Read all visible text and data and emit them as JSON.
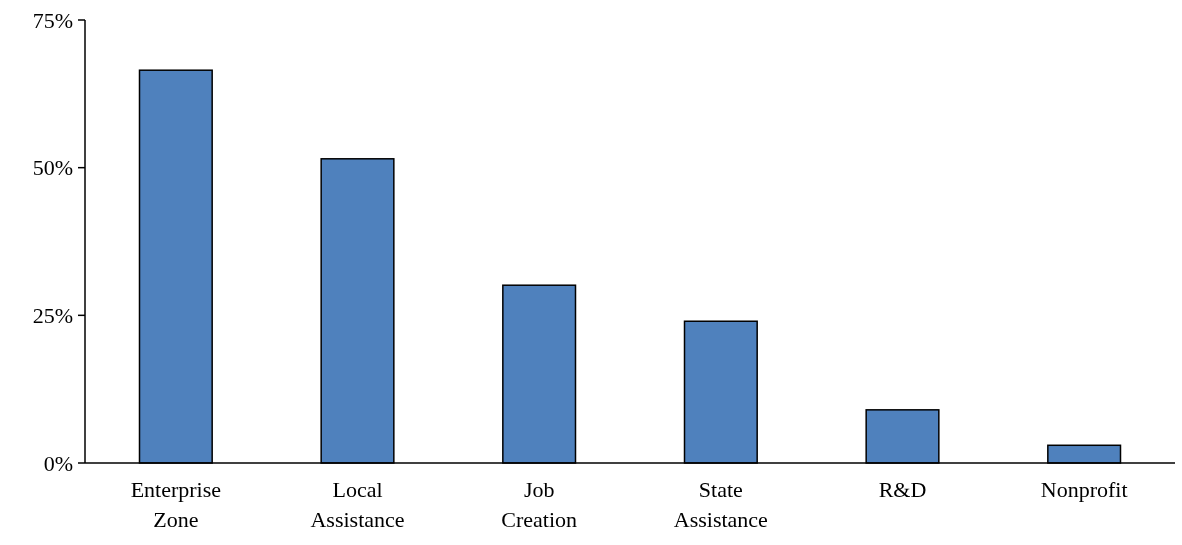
{
  "chart_data": {
    "type": "bar",
    "categories": [
      "Enterprise Zone",
      "Local Assistance",
      "Job Creation",
      "State Assistance",
      "R&D",
      "Nonprofit"
    ],
    "values": [
      66.5,
      51.5,
      30.1,
      24,
      9,
      3
    ],
    "color": "#4f81bd",
    "ylim": [
      0,
      75
    ],
    "yticks": [
      {
        "value": 0,
        "label": "0%"
      },
      {
        "value": 25,
        "label": "25%"
      },
      {
        "value": 50,
        "label": "50%"
      },
      {
        "value": 75,
        "label": "75%"
      }
    ],
    "grid": false
  }
}
